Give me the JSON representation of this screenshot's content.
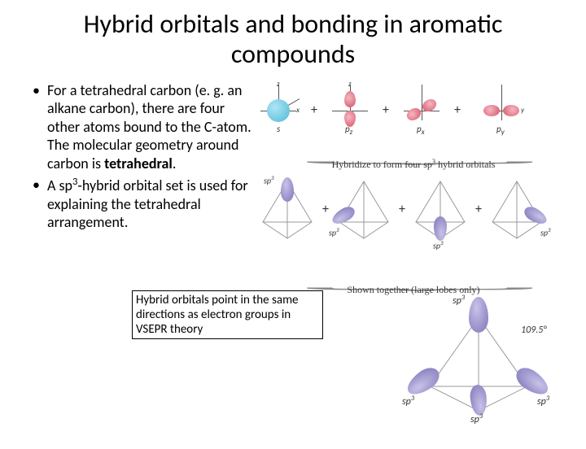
{
  "title": "Hybrid orbitals and bonding in aromatic compounds",
  "bullets": {
    "b1": "For a tetrahedral carbon (e. g. an alkane carbon), there are four other atoms bound to the C-atom.  The molecular geometry around carbon is <b>tetrahedral</b>.",
    "b2": "A sp<sup>3</sup>-hybrid orbital set is used for explaining the tetrahedral arrangement."
  },
  "caption": "Hybrid orbitals point in the same directions as electron groups in VSEPR theory",
  "diagram": {
    "axis_labels": {
      "x": "x",
      "y": "y",
      "z": "z"
    },
    "orbital_labels": {
      "s": "s",
      "px": "p<sub>x</sub>",
      "py": "p<sub>y</sub>",
      "pz": "p<sub>z</sub>"
    },
    "plus": "+",
    "brace1_text": "Hybridize to form four sp<sup>3</sup> hybrid orbitals",
    "brace2_text": "Shown together (large lobes only)",
    "sp3_label": "sp<sup>3</sup>",
    "angle": "109.5°",
    "colors": {
      "s_orbital": "#4fb9d6",
      "p_orbital": "#d4536a",
      "hybrid_lobe": "#7d74b8",
      "axis": "#555555",
      "tetra_edge": "#888888",
      "background": "#ffffff"
    }
  }
}
